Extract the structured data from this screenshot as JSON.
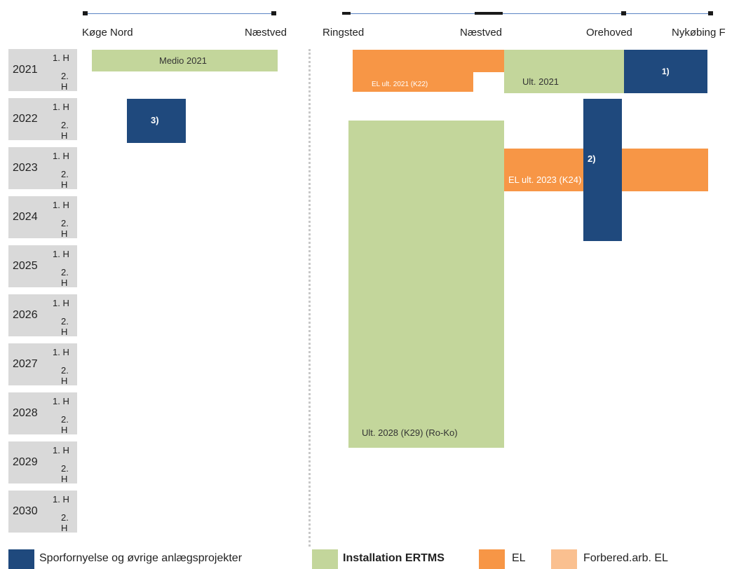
{
  "left_stations": [
    "Køge Nord",
    "Næstved"
  ],
  "right_stations": [
    "Ringsted",
    "Næstved",
    "Orehoved",
    "Nykøbing F"
  ],
  "half_labels": {
    "h1": "1. H",
    "h2": "2. H"
  },
  "years": [
    "2021",
    "2022",
    "2023",
    "2024",
    "2025",
    "2026",
    "2027",
    "2028",
    "2029",
    "2030"
  ],
  "bars": {
    "medio_2021": "Medio 2021",
    "el_2021": "EL ult. 2021 (K22)",
    "ult_2021": "Ult. 2021",
    "note_1": "1)",
    "note_3": "3)",
    "note_2": "2)",
    "el_2023": "EL ult. 2023 (K24)",
    "ult_2028": "Ult. 2028 (K29) (Ro-Ko)"
  },
  "legend": [
    {
      "label": "Sporfornyelse og øvrige anlægsprojekter",
      "color": "#1f497d"
    },
    {
      "label": "Installation ERTMS",
      "color": "#c3d69b"
    },
    {
      "label": "EL",
      "color": "#f79646"
    },
    {
      "label": "Forbered.arb. EL",
      "color": "#fac090"
    }
  ],
  "colors": {
    "blue": "#1f497d",
    "green": "#c3d69b",
    "orange": "#f79646",
    "light_orange": "#fac090",
    "year_cell": "#d9d9d9"
  }
}
